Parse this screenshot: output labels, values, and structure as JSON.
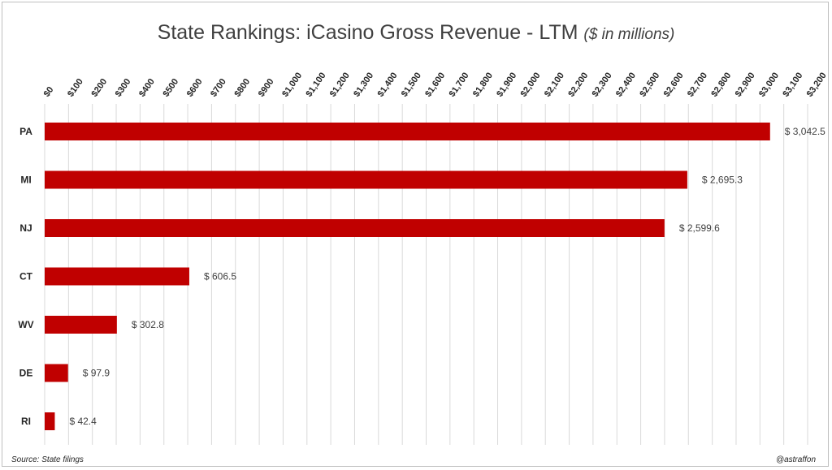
{
  "title": "State Rankings: iCasino Gross Revenue - LTM",
  "title_unit": "($ in millions)",
  "source": "Source: State filings",
  "credit": "@astraffon",
  "colors": {
    "bar": "#c00000",
    "grid": "#d9d9d9",
    "text": "#262626",
    "label": "#404040"
  },
  "chart_data": {
    "type": "bar",
    "orientation": "horizontal",
    "title": "State Rankings: iCasino Gross Revenue - LTM ($ in millions)",
    "categories": [
      "PA",
      "MI",
      "NJ",
      "CT",
      "WV",
      "DE",
      "RI"
    ],
    "values": [
      3042.5,
      2695.3,
      2599.6,
      606.5,
      302.8,
      97.9,
      42.4
    ],
    "value_labels": [
      "$ 3,042.5",
      "$ 2,695.3",
      "$ 2,599.6",
      "$ 606.5",
      "$ 302.8",
      "$ 97.9",
      "$ 42.4"
    ],
    "xlim": [
      0,
      3200
    ],
    "x_tick_step": 100,
    "x_tick_labels": [
      "$0",
      "$100",
      "$200",
      "$300",
      "$400",
      "$500",
      "$600",
      "$700",
      "$800",
      "$900",
      "$1,000",
      "$1,100",
      "$1,200",
      "$1,300",
      "$1,400",
      "$1,500",
      "$1,600",
      "$1,700",
      "$1,800",
      "$1,900",
      "$2,000",
      "$2,100",
      "$2,200",
      "$2,300",
      "$2,400",
      "$2,500",
      "$2,600",
      "$2,700",
      "$2,800",
      "$2,900",
      "$3,000",
      "$3,100",
      "$3,200"
    ],
    "x_axis_position": "top",
    "grid": true,
    "legend": "none"
  }
}
